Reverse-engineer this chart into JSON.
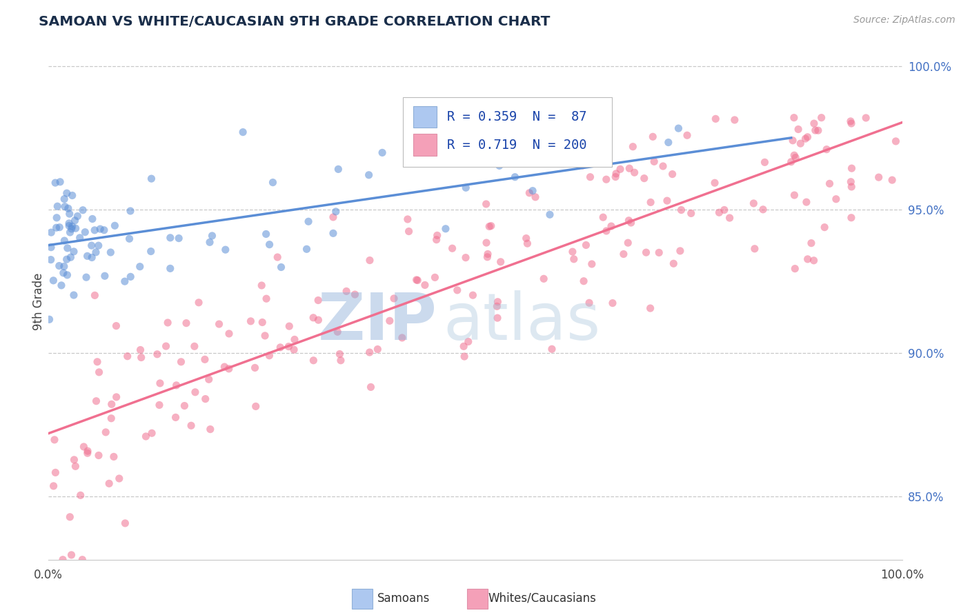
{
  "title": "SAMOAN VS WHITE/CAUCASIAN 9TH GRADE CORRELATION CHART",
  "source_text": "Source: ZipAtlas.com",
  "ylabel": "9th Grade",
  "right_ytick_labels": [
    "85.0%",
    "90.0%",
    "95.0%",
    "100.0%"
  ],
  "right_ytick_positions": [
    0.85,
    0.9,
    0.95,
    1.0
  ],
  "blue_color": "#5b8ed6",
  "pink_color": "#f07090",
  "blue_fill_color": "#adc8f0",
  "pink_fill_color": "#f4a0b8",
  "title_color": "#1a2e4a",
  "watermark_zip_color": "#c0d0e8",
  "watermark_atlas_color": "#b8cce0",
  "background_color": "#ffffff",
  "grid_color": "#c8c8c8",
  "xlim": [
    0.0,
    1.0
  ],
  "ylim": [
    0.828,
    1.008
  ],
  "legend_label1": "R = 0.359  N =  87",
  "legend_label2": "R = 0.719  N = 200",
  "bottom_label1": "Samoans",
  "bottom_label2": "Whites/Caucasians",
  "blue_N": 87,
  "pink_N": 200
}
